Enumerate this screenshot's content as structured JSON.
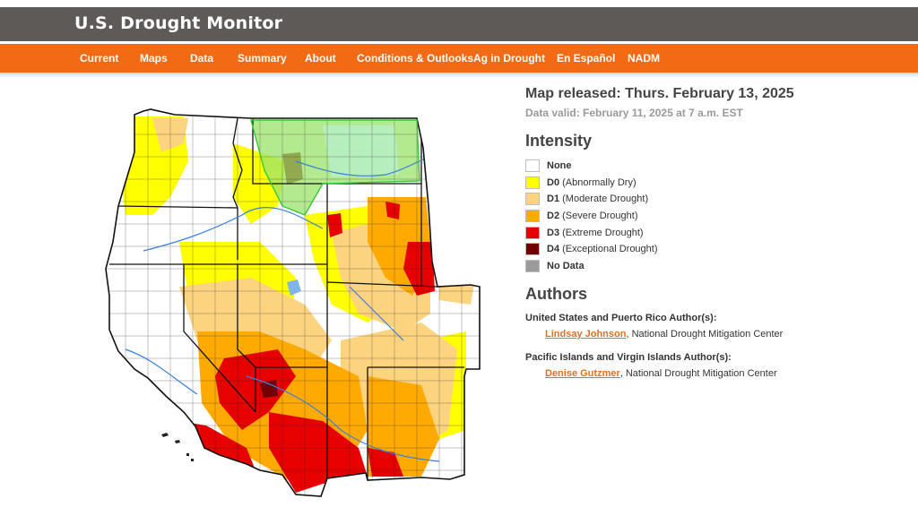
{
  "header": {
    "title": "U.S. Drought Monitor"
  },
  "nav": {
    "items": [
      {
        "label": "Current"
      },
      {
        "label": "Maps"
      },
      {
        "label": "Data"
      },
      {
        "label": "Summary"
      },
      {
        "label": "About"
      },
      {
        "label": "Conditions & Outlooks"
      },
      {
        "label": "Ag in Drought"
      },
      {
        "label": "En Español"
      },
      {
        "label": "NADM"
      }
    ]
  },
  "colors": {
    "header_bg": "#5e5a57",
    "nav_bg": "#f26a13",
    "link": "#e07020"
  },
  "map": {
    "release": "Map released: Thurs. February 13, 2025",
    "valid": "Data valid: February 11, 2025 at 7 a.m. EST"
  },
  "legend": {
    "heading": "Intensity",
    "items": [
      {
        "code": "",
        "desc": "None",
        "color": "#ffffff"
      },
      {
        "code": "D0",
        "desc": " (Abnormally Dry)",
        "color": "#ffff00"
      },
      {
        "code": "D1",
        "desc": " (Moderate Drought)",
        "color": "#fcd37f"
      },
      {
        "code": "D2",
        "desc": " (Severe Drought)",
        "color": "#ffaa00"
      },
      {
        "code": "D3",
        "desc": " (Extreme Drought)",
        "color": "#e60000"
      },
      {
        "code": "D4",
        "desc": " (Exceptional Drought)",
        "color": "#730000"
      },
      {
        "code": "",
        "desc": "No Data",
        "color": "#9b9b9b"
      }
    ]
  },
  "authors": {
    "heading": "Authors",
    "groups": [
      {
        "label": "United States and Puerto Rico Author(s):",
        "name": "Lindsay Johnson",
        "org": ", National Drought Mitigation Center"
      },
      {
        "label": "Pacific Islands and Virgin Islands Author(s):",
        "name": "Denise Gutzmer",
        "org": ", National Drought Mitigation Center"
      }
    ]
  }
}
